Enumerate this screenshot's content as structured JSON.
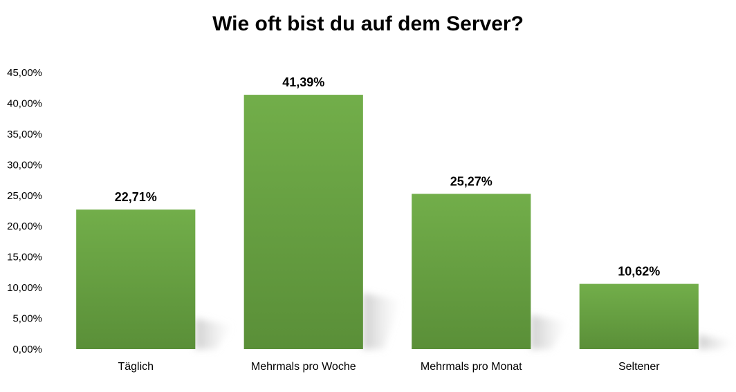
{
  "chart_data": {
    "type": "bar",
    "title": "Wie oft bist du auf dem Server?",
    "categories": [
      "Täglich",
      "Mehrmals pro Woche",
      "Mehrmals pro Monat",
      "Seltener"
    ],
    "values": [
      22.71,
      41.39,
      25.27,
      10.62
    ],
    "value_labels": [
      "22,71%",
      "41,39%",
      "25,27%",
      "10,62%"
    ],
    "ylim": [
      0,
      45
    ],
    "yticks": [
      0,
      5,
      10,
      15,
      20,
      25,
      30,
      35,
      40,
      45
    ],
    "ytick_labels": [
      "0,00%",
      "5,00%",
      "10,00%",
      "15,00%",
      "20,00%",
      "25,00%",
      "30,00%",
      "35,00%",
      "40,00%",
      "45,00%"
    ],
    "xlabel": "",
    "ylabel": "",
    "grid": false,
    "legend": "none",
    "bar_color_top": "#72ae4a",
    "bar_color_bottom": "#5a8f38"
  }
}
